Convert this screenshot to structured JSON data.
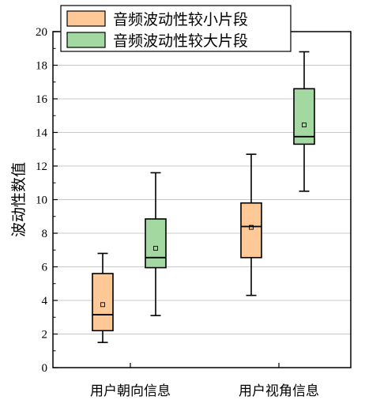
{
  "chart_data": {
    "type": "box",
    "title": "",
    "xlabel": "",
    "ylabel": "波动性数值",
    "ylim": [
      0,
      20
    ],
    "yticks": [
      0,
      2,
      4,
      6,
      8,
      10,
      12,
      14,
      16,
      18,
      20
    ],
    "categories": [
      "用户朝向信息",
      "用户视角信息"
    ],
    "grid": true,
    "legend_position": "top",
    "series": [
      {
        "name": "音频波动性较小片段",
        "color": "#ffc997",
        "boxes": [
          {
            "whisker_low": 1.5,
            "q1": 2.2,
            "median": 3.15,
            "q3": 5.6,
            "whisker_high": 6.8,
            "mean": 3.75
          },
          {
            "whisker_low": 4.3,
            "q1": 6.55,
            "median": 8.4,
            "q3": 9.8,
            "whisker_high": 12.7,
            "mean": 8.35
          }
        ]
      },
      {
        "name": "音频波动性较大片段",
        "color": "#a3d9a1",
        "boxes": [
          {
            "whisker_low": 3.1,
            "q1": 5.95,
            "median": 6.55,
            "q3": 8.85,
            "whisker_high": 11.6,
            "mean": 7.1
          },
          {
            "whisker_low": 10.5,
            "q1": 13.3,
            "median": 13.75,
            "q3": 16.6,
            "whisker_high": 18.8,
            "mean": 14.45
          }
        ]
      }
    ]
  }
}
